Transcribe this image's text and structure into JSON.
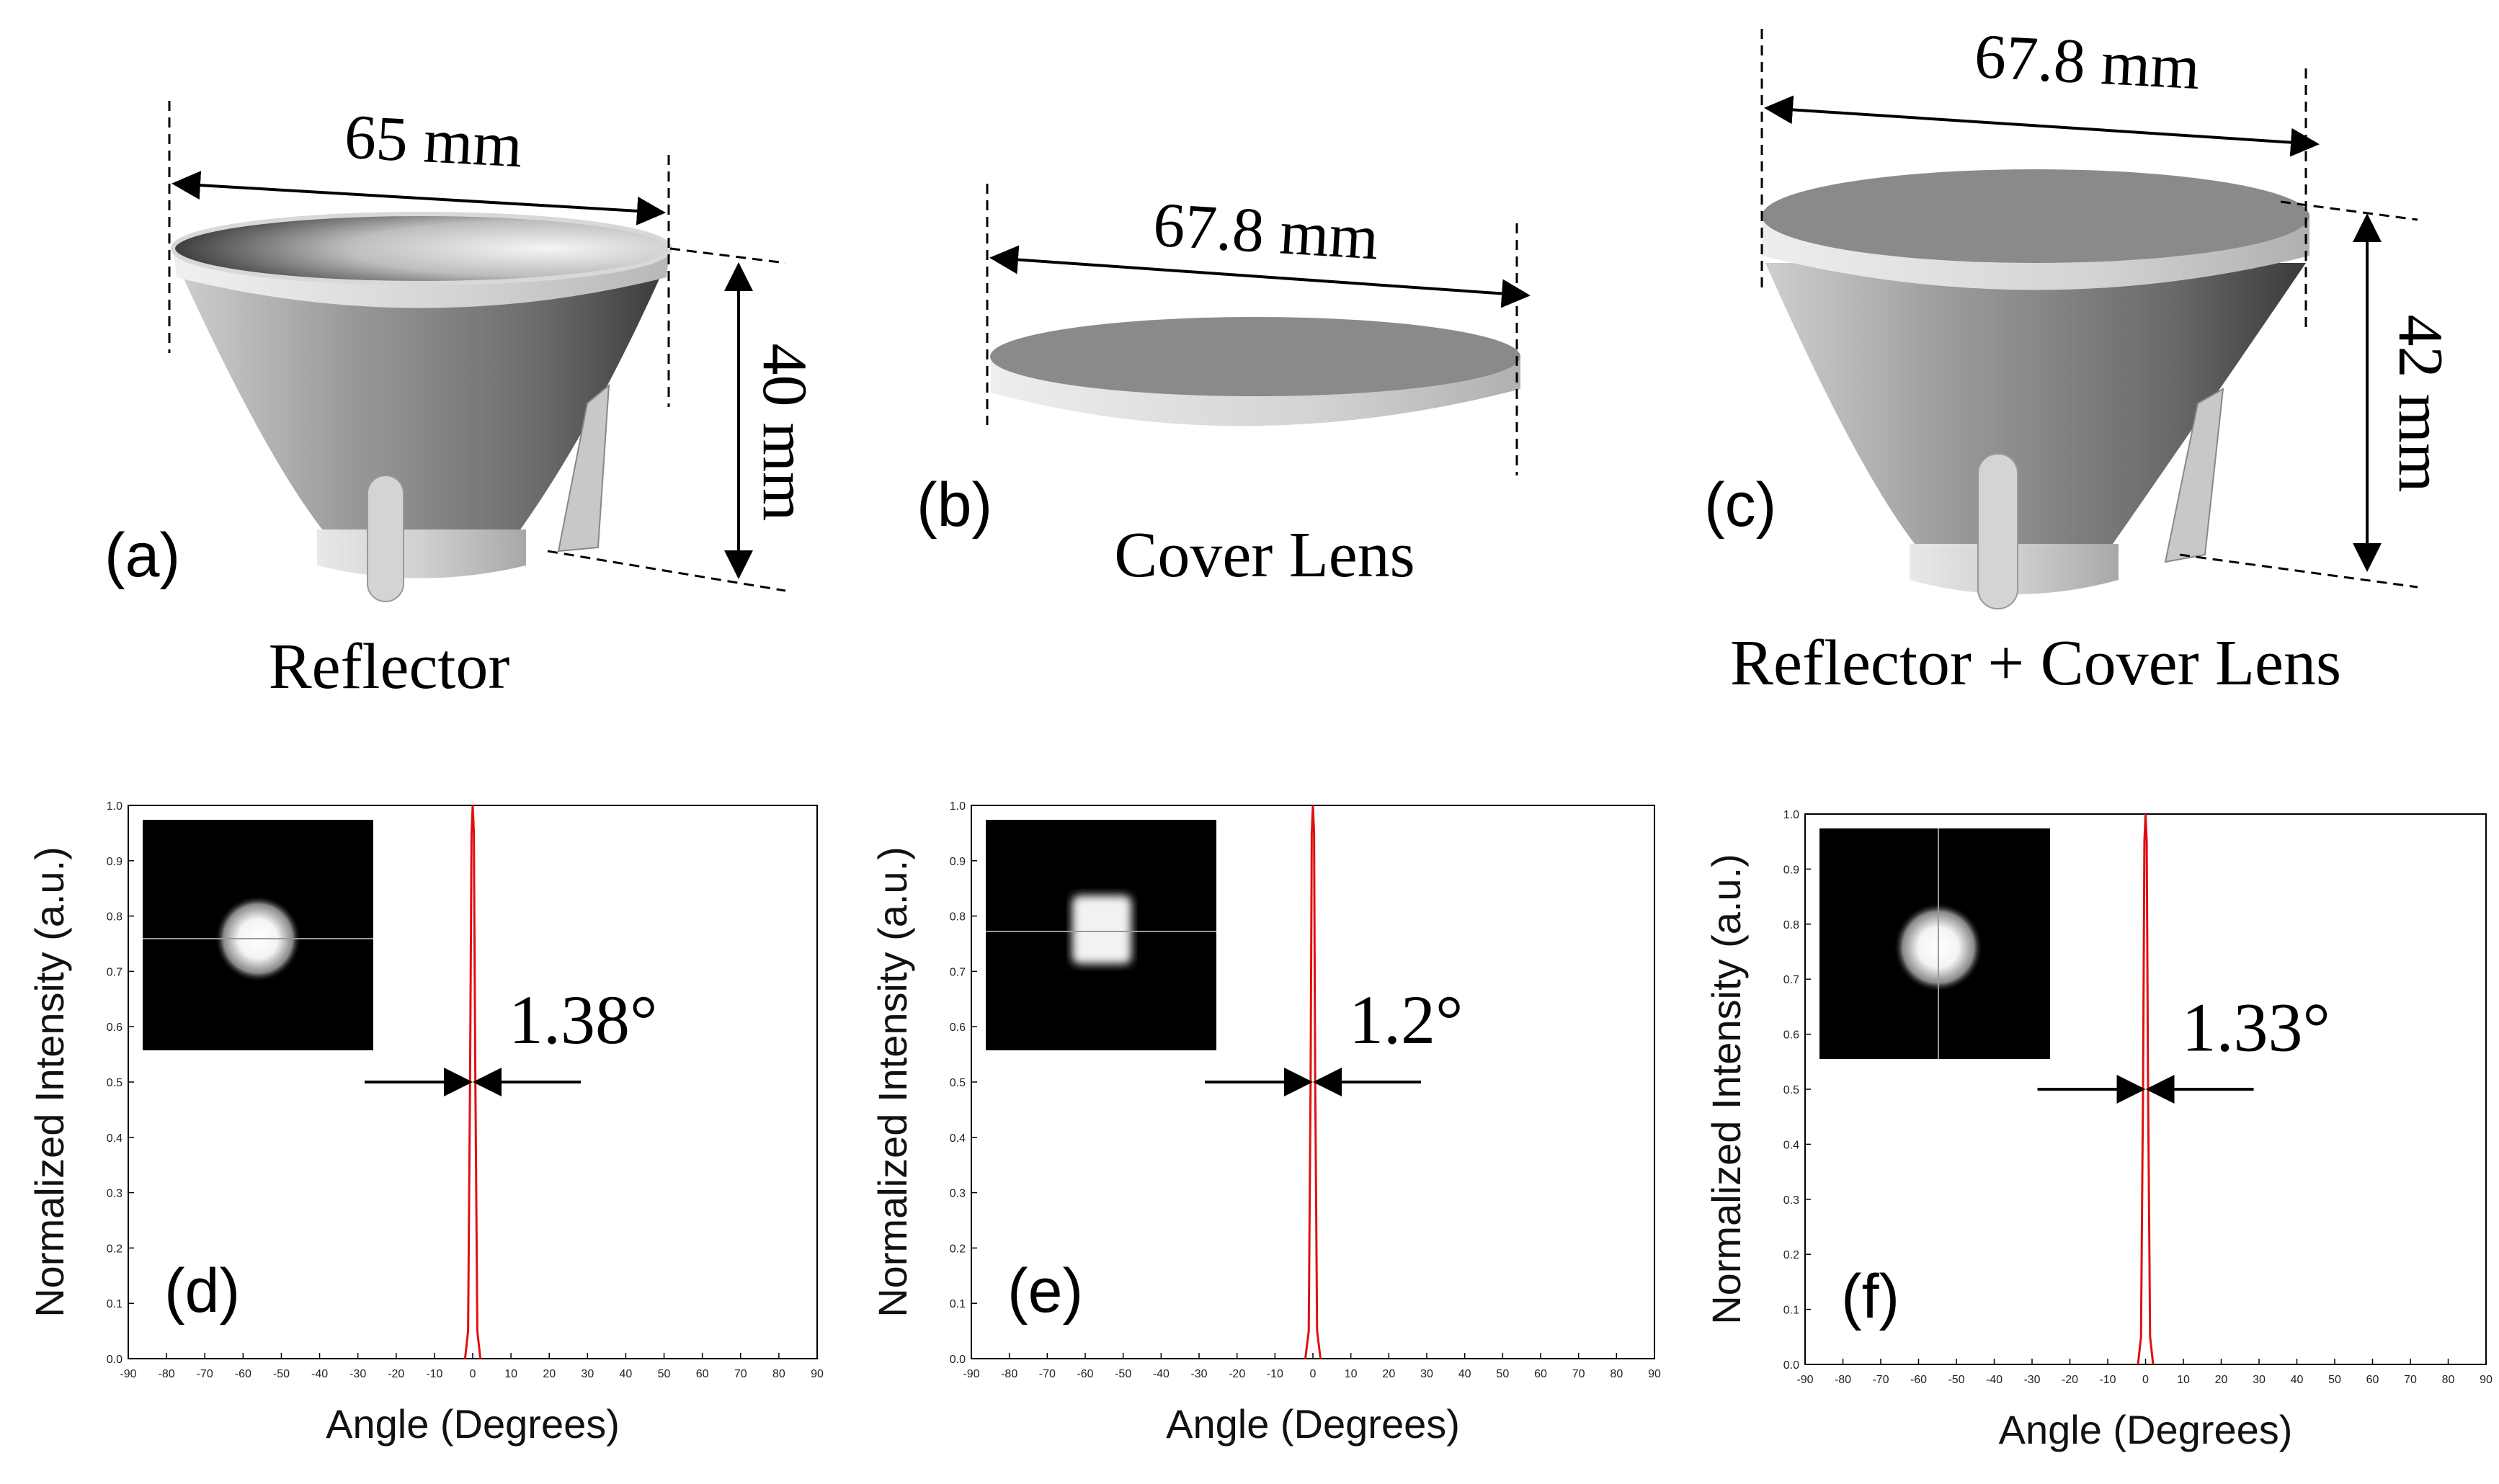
{
  "figure": {
    "panel_a": {
      "letter": "(a)",
      "caption": "Reflector",
      "width_label": "65 mm",
      "height_label": "40 mm"
    },
    "panel_b": {
      "letter": "(b)",
      "caption": "Cover Lens",
      "width_label": "67.8 mm"
    },
    "panel_c": {
      "letter": "(c)",
      "caption": "Reflector + Cover Lens",
      "width_label": "67.8 mm",
      "height_label": "42 mm"
    },
    "colors": {
      "curve": "#e01010",
      "axis": "#000000",
      "inset_bg": "#000000"
    }
  },
  "chart_data": [
    {
      "type": "line",
      "letter": "(d)",
      "annotation": "1.38°",
      "xlabel": "Angle (Degrees)",
      "ylabel": "Normalized Intensity (a.u.)",
      "xlim": [
        -90,
        90
      ],
      "ylim": [
        0,
        1
      ],
      "xticks": [
        -90,
        -80,
        -70,
        -60,
        -50,
        -40,
        -30,
        -20,
        -10,
        0,
        10,
        20,
        30,
        40,
        50,
        60,
        70,
        80,
        90
      ],
      "yticks": [
        0,
        0.1,
        0.2,
        0.3,
        0.4,
        0.5,
        0.6,
        0.7,
        0.8,
        0.9,
        1.0
      ],
      "ytick_labels": [
        "0.0",
        "0.1",
        "0.2",
        "0.3",
        "0.4",
        "0.5",
        "0.6",
        "0.7",
        "0.8",
        "0.9",
        "1.0"
      ],
      "inset": "round spot",
      "series": [
        {
          "name": "intensity",
          "x": [
            -2,
            -1.2,
            -0.69,
            -0.3,
            0,
            0.3,
            0.69,
            1.2,
            2
          ],
          "y": [
            0,
            0.05,
            0.5,
            0.95,
            1.0,
            0.95,
            0.5,
            0.05,
            0
          ]
        }
      ]
    },
    {
      "type": "line",
      "letter": "(e)",
      "annotation": "1.2°",
      "xlabel": "Angle (Degrees)",
      "ylabel": "Normalized Intensity (a.u.)",
      "xlim": [
        -90,
        90
      ],
      "ylim": [
        0,
        1
      ],
      "xticks": [
        -90,
        -80,
        -70,
        -60,
        -50,
        -40,
        -30,
        -20,
        -10,
        0,
        10,
        20,
        30,
        40,
        50,
        60,
        70,
        80,
        90
      ],
      "yticks": [
        0,
        0.1,
        0.2,
        0.3,
        0.4,
        0.5,
        0.6,
        0.7,
        0.8,
        0.9,
        1.0
      ],
      "ytick_labels": [
        "0.0",
        "0.1",
        "0.2",
        "0.3",
        "0.4",
        "0.5",
        "0.6",
        "0.7",
        "0.8",
        "0.9",
        "1.0"
      ],
      "inset": "square spot",
      "series": [
        {
          "name": "intensity",
          "x": [
            -2,
            -1.1,
            -0.6,
            -0.3,
            0,
            0.3,
            0.6,
            1.1,
            2
          ],
          "y": [
            0,
            0.05,
            0.5,
            0.95,
            1.0,
            0.95,
            0.5,
            0.05,
            0
          ]
        }
      ]
    },
    {
      "type": "line",
      "letter": "(f)",
      "annotation": "1.33°",
      "xlabel": "Angle (Degrees)",
      "ylabel": "Normalized Intensity (a.u.)",
      "xlim": [
        -90,
        90
      ],
      "ylim": [
        0,
        1
      ],
      "xticks": [
        -90,
        -80,
        -70,
        -60,
        -50,
        -40,
        -30,
        -20,
        -10,
        0,
        10,
        20,
        30,
        40,
        50,
        60,
        70,
        80,
        90
      ],
      "yticks": [
        0,
        0.1,
        0.2,
        0.3,
        0.4,
        0.5,
        0.6,
        0.7,
        0.8,
        0.9,
        1.0
      ],
      "ytick_labels": [
        "0.0",
        "0.1",
        "0.2",
        "0.3",
        "0.4",
        "0.5",
        "0.6",
        "0.7",
        "0.8",
        "0.9",
        "1.0"
      ],
      "inset": "round spot vertical line",
      "series": [
        {
          "name": "intensity",
          "x": [
            -2,
            -1.2,
            -0.665,
            -0.3,
            0,
            0.3,
            0.665,
            1.2,
            2
          ],
          "y": [
            0,
            0.05,
            0.5,
            0.95,
            1.0,
            0.95,
            0.5,
            0.05,
            0
          ]
        }
      ]
    }
  ]
}
